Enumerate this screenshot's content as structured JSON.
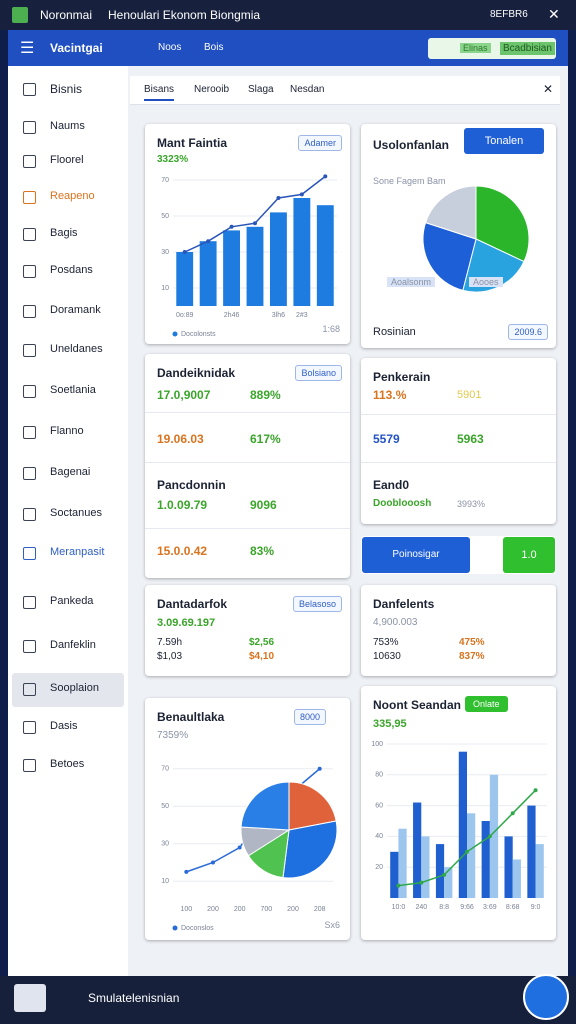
{
  "window": {
    "app": "Noronmai",
    "title": "Henoulari Ekonom Biongmia",
    "status": "8EFBR6"
  },
  "header": {
    "title": "Vacintgai",
    "links": [
      "Noos",
      "Bois"
    ],
    "input": "Elinas",
    "button": "Bcadbisian"
  },
  "sidebar": {
    "items": [
      "Bisnis",
      "Naums",
      "Floorel",
      "Reapeno",
      "Bagis",
      "Posdans",
      "Doramank",
      "Uneldanes",
      "Soetlania",
      "Flanno",
      "Bagenai",
      "Soctanues",
      "Meranpasit",
      "Pankeda",
      "Danfeklin",
      "Sooplaion",
      "Dasis",
      "Betoes"
    ]
  },
  "tabs": [
    "Bisans",
    "Nerooib",
    "Slaga",
    "Nesdan"
  ],
  "cards": [
    {
      "title": "Mant Faintia",
      "value": "3323%",
      "button": "Adamer",
      "footer": "1:68"
    },
    {
      "title": "Usolonfanlan",
      "button": "Tonalen",
      "subtitle": "Sone Fagem Bam",
      "legend": [
        "Aoalsonm",
        "Aooes"
      ],
      "footer": "Rosinian",
      "badge": "2009.6"
    },
    {
      "title": "Dandeiknidak",
      "button": "Bolsiano",
      "rows": [
        [
          "17.0,9007",
          "889%"
        ],
        [
          "19.06.03",
          "617%"
        ]
      ],
      "subtitle": "Pancdonnin",
      "rows2": [
        [
          "1.0.09.79",
          "9096"
        ],
        [
          "15.0.0.42",
          "83%"
        ]
      ]
    },
    {
      "title": "Penkerain",
      "rows": [
        [
          "113.%",
          "5901"
        ],
        [
          "5579",
          "5963"
        ]
      ],
      "subtitle": "Eand0",
      "note": "Dooblooosh",
      "note_value": "3993%"
    },
    {
      "buttons": [
        "Poinosigar",
        "1.0"
      ]
    },
    {
      "title": "Dantadarfok",
      "button": "Belasoso",
      "value": "3.09.69.197",
      "rows": [
        [
          "7.59h",
          "$2,56"
        ],
        [
          "$1,03",
          "$4,10"
        ]
      ]
    },
    {
      "title": "Danfelents",
      "value": "4,900.003",
      "rows": [
        [
          "753%",
          "475%"
        ],
        [
          "10630",
          "837%"
        ]
      ]
    },
    {
      "title": "Benaultlaka",
      "button": "8000",
      "value": "7359%",
      "footer": "Sx6"
    },
    {
      "title": "Noont Seandan",
      "button": "Onlate",
      "value": "335,95"
    }
  ],
  "bottom": {
    "label": "Smulatelenisnian"
  },
  "chart_data": [
    {
      "type": "bar",
      "categories": [
        "0o:89",
        null,
        "2h46",
        null,
        "3lh6",
        "2#3",
        null
      ],
      "ylim": [
        0,
        80
      ],
      "yticks": [
        10,
        30,
        50,
        70
      ],
      "grid": true,
      "series": [
        {
          "name": "Docolonsts",
          "color": "#1e7be0",
          "values": [
            30,
            36,
            42,
            44,
            52,
            60,
            56
          ]
        },
        {
          "type": "line",
          "color": "#2a55b8",
          "values": [
            30,
            36,
            44,
            46,
            60,
            62,
            72
          ]
        }
      ]
    },
    {
      "type": "pie",
      "values": [
        32,
        22,
        26,
        20
      ],
      "colors": [
        "#2ab52a",
        "#29a3e0",
        "#1d5fd6",
        "#c7cfdc"
      ]
    },
    {
      "type": "line",
      "categories": [
        "100",
        "200",
        "200",
        "700",
        "200",
        "208"
      ],
      "ylim": [
        0,
        80
      ],
      "yticks": [
        10,
        30,
        50,
        70
      ],
      "grid": true,
      "series": [
        {
          "name": "Doconslos",
          "color": "#2a6ad8",
          "values": [
            15,
            20,
            28,
            48,
            58,
            70
          ]
        }
      ]
    },
    {
      "type": "pie",
      "values": [
        22,
        30,
        14,
        10,
        24
      ],
      "colors": [
        "#e0623a",
        "#1e6fe0",
        "#4fc24f",
        "#b0b6c3",
        "#2a7fe6"
      ]
    },
    {
      "type": "bar",
      "categories": [
        "10:0",
        "240",
        "8:8",
        "9:66",
        "3:69",
        "8:68",
        "9:0"
      ],
      "ylim": [
        0,
        100
      ],
      "yticks": [
        20,
        40,
        60,
        80,
        100
      ],
      "grid": true,
      "series": [
        {
          "color": "#1f5fd0",
          "values": [
            30,
            62,
            35,
            95,
            50,
            40,
            60
          ]
        },
        {
          "color": "#9cc6ee",
          "values": [
            45,
            40,
            20,
            55,
            80,
            25,
            35
          ]
        },
        {
          "type": "line",
          "color": "#2fa84a",
          "values": [
            8,
            10,
            15,
            30,
            40,
            55,
            70
          ]
        }
      ]
    }
  ]
}
